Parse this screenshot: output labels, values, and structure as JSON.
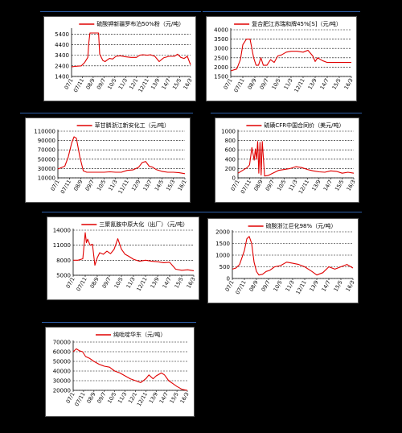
{
  "chart_data": [
    {
      "type": "line",
      "title": "硫酸钾新疆罗布泊50%粉（元/吨）",
      "yticks": [
        5400,
        4400,
        3400,
        2400,
        1400
      ],
      "ylim": [
        1400,
        5800
      ],
      "xticks": [
        "07/1",
        "07/11",
        "08/9",
        "09/7",
        "10/5",
        "11/3",
        "12/1",
        "12/11",
        "13/9",
        "14/7",
        "15/5",
        "16/3"
      ],
      "series": [
        {
          "color": "#e00000",
          "x": [
            0,
            0.3,
            0.9,
            1.2,
            1.5,
            1.6,
            1.7,
            2.3,
            2.5,
            2.6,
            2.9,
            3.1,
            3.5,
            3.8,
            4.1,
            4.5,
            5.0,
            5.5,
            6.0,
            6.3,
            6.6,
            7.0,
            7.3,
            7.7,
            8.1,
            8.5,
            9.0,
            9.5,
            9.8,
            10.1,
            10.4,
            10.7,
            11.0
          ],
          "y": [
            2300,
            2350,
            2400,
            2700,
            3200,
            4600,
            5500,
            5500,
            5500,
            3500,
            2900,
            2800,
            3100,
            3050,
            3300,
            3350,
            3250,
            3200,
            3200,
            3400,
            3450,
            3400,
            3450,
            3300,
            2800,
            3150,
            3300,
            3300,
            3500,
            3200,
            3100,
            3300,
            2500
          ]
        }
      ]
    },
    {
      "type": "line",
      "title": "复合肥江苏瑞和牌45%[S]（元/吨）",
      "yticks": [
        4000,
        3500,
        3000,
        2500,
        2000,
        1500
      ],
      "ylim": [
        1500,
        4000
      ],
      "xticks": [
        "07/1",
        "07/11",
        "08/9",
        "09/7",
        "10/5",
        "11/3",
        "12/11",
        "13/9",
        "14/7",
        "15/5",
        "16/3"
      ],
      "series": [
        {
          "color": "#e00000",
          "x": [
            0,
            0.5,
            0.8,
            1.0,
            1.3,
            1.6,
            1.9,
            2.1,
            2.3,
            2.5,
            2.7,
            3.0,
            3.3,
            3.6,
            3.9,
            4.2,
            4.6,
            5.0,
            5.5,
            6.0,
            6.4,
            6.8,
            7.0,
            7.2,
            7.6,
            8.0,
            8.5,
            9.0,
            9.5,
            10.0
          ],
          "y": [
            1800,
            1900,
            2400,
            3200,
            3500,
            3500,
            2500,
            2100,
            2100,
            2500,
            2100,
            2100,
            2400,
            2250,
            2600,
            2650,
            2800,
            2850,
            2850,
            2800,
            2900,
            2600,
            2300,
            2500,
            2350,
            2250,
            2250,
            2250,
            2250,
            2250
          ]
        }
      ]
    },
    {
      "type": "line",
      "title": "草甘膦浙江新安化工（元/吨）",
      "yticks": [
        110000,
        90000,
        70000,
        50000,
        30000,
        10000
      ],
      "ylim": [
        10000,
        110000
      ],
      "xticks": [
        "07/1",
        "07/11",
        "08/9",
        "09/7",
        "10/5",
        "11/3",
        "11/11",
        "12/9",
        "13/7",
        "14/5",
        "15/3",
        "16/1"
      ],
      "series": [
        {
          "color": "#e00000",
          "x": [
            0,
            0.3,
            0.6,
            0.9,
            1.2,
            1.4,
            1.6,
            1.9,
            2.2,
            2.5,
            3.0,
            3.5,
            4.0,
            4.5,
            5.0,
            5.5,
            6.0,
            6.5,
            7.0,
            7.3,
            7.6,
            7.9,
            8.2,
            8.5,
            9.0,
            9.5,
            10.0,
            10.5,
            11.0
          ],
          "y": [
            29000,
            32000,
            35000,
            55000,
            85000,
            98000,
            95000,
            55000,
            25000,
            22000,
            22000,
            22000,
            22000,
            23000,
            22000,
            22000,
            26000,
            27000,
            33000,
            43000,
            45000,
            35000,
            33000,
            28000,
            24000,
            22000,
            22000,
            21000,
            19000
          ]
        }
      ]
    },
    {
      "type": "line",
      "title": "硫磺CFR中国合同价（美元/吨）",
      "yticks": [
        1000,
        800,
        600,
        400,
        200,
        0
      ],
      "ylim": [
        0,
        1000
      ],
      "xticks": [
        "07/1",
        "07/11",
        "08/9",
        "09/7",
        "10/5",
        "11/3",
        "12/11",
        "13/9",
        "14/7",
        "15/5",
        "16/3"
      ],
      "series": [
        {
          "color": "#e00000",
          "x": [
            0,
            0.4,
            0.8,
            1.0,
            1.2,
            1.4,
            1.5,
            1.6,
            1.7,
            1.8,
            1.9,
            2.0,
            2.1,
            2.3,
            2.6,
            3.0,
            3.5,
            4.0,
            4.5,
            5.0,
            5.5,
            6.0,
            6.5,
            7.0,
            7.5,
            8.0,
            8.5,
            9.0,
            9.5,
            10.0
          ],
          "y": [
            100,
            160,
            220,
            280,
            650,
            380,
            620,
            400,
            780,
            100,
            760,
            60,
            780,
            40,
            50,
            100,
            160,
            180,
            200,
            240,
            220,
            180,
            150,
            130,
            120,
            150,
            140,
            100,
            120,
            100
          ]
        }
      ]
    },
    {
      "type": "line",
      "title": "三聚氰胺中原大化（出厂）（元/吨）",
      "yticks": [
        14000,
        11000,
        8000,
        5000
      ],
      "ylim": [
        5000,
        14000
      ],
      "xticks": [
        "07/1",
        "07/11",
        "08/9",
        "09/7",
        "10/5",
        "11/3",
        "12/11",
        "13/9",
        "14/7",
        "15/5",
        "16/3"
      ],
      "series": [
        {
          "color": "#e00000",
          "x": [
            0,
            0.4,
            0.8,
            1.0,
            1.1,
            1.2,
            1.4,
            1.6,
            1.8,
            2.0,
            2.2,
            2.5,
            2.8,
            3.1,
            3.4,
            3.7,
            4.0,
            4.3,
            4.6,
            5.0,
            5.5,
            6.0,
            6.5,
            7.0,
            7.5,
            8.0,
            8.5,
            9.0,
            9.5,
            10.0
          ],
          "y": [
            8000,
            8000,
            8300,
            13500,
            11500,
            12200,
            11000,
            11200,
            7000,
            8500,
            9500,
            9200,
            9800,
            9300,
            10200,
            12300,
            10200,
            9200,
            8800,
            8200,
            7800,
            8000,
            7800,
            7700,
            7500,
            7600,
            6200,
            6000,
            6100,
            5900
          ]
        }
      ]
    },
    {
      "type": "line",
      "title": "硫酸浙江巨化98%（元/吨）",
      "yticks": [
        2000,
        1500,
        1000,
        500,
        0
      ],
      "ylim": [
        0,
        2000
      ],
      "xticks": [
        "07/1",
        "07/11",
        "08/9",
        "09/7",
        "10/5",
        "11/3",
        "12/11",
        "13/9",
        "14/7",
        "15/5",
        "16/3"
      ],
      "series": [
        {
          "color": "#e00000",
          "x": [
            0,
            0.3,
            0.6,
            0.8,
            1.0,
            1.2,
            1.4,
            1.6,
            1.8,
            2.0,
            2.2,
            2.5,
            2.8,
            3.1,
            3.5,
            4.0,
            4.5,
            5.0,
            5.5,
            6.0,
            6.3,
            6.6,
            7.0,
            7.5,
            8.0,
            8.5,
            9.0,
            9.5,
            10.0
          ],
          "y": [
            400,
            450,
            600,
            900,
            1200,
            1700,
            1800,
            1500,
            700,
            300,
            150,
            180,
            300,
            350,
            500,
            550,
            700,
            650,
            600,
            500,
            400,
            300,
            150,
            250,
            500,
            400,
            500,
            600,
            450
          ]
        }
      ]
    },
    {
      "type": "line",
      "title": "纯吡啶华东（元/吨）",
      "yticks": [
        70000,
        60000,
        50000,
        40000,
        30000,
        20000
      ],
      "ylim": [
        20000,
        70000
      ],
      "xticks": [
        "07/1",
        "07/11",
        "08/9",
        "09/7",
        "10/5",
        "11/3",
        "12/1",
        "12/11",
        "13/9",
        "14/7",
        "15/5",
        "16/3"
      ],
      "series": [
        {
          "color": "#e00000",
          "x": [
            0,
            0.3,
            0.6,
            0.9,
            1.2,
            1.6,
            2.0,
            2.5,
            3.0,
            3.5,
            4.0,
            4.5,
            5.0,
            5.5,
            6.0,
            6.5,
            7.0,
            7.3,
            7.7,
            8.0,
            8.5,
            8.8,
            9.2,
            9.6,
            10.0,
            10.5,
            11.0
          ],
          "y": [
            60000,
            63000,
            61000,
            60000,
            55000,
            53000,
            50000,
            47000,
            45000,
            44000,
            40000,
            38000,
            35000,
            32000,
            30000,
            28000,
            32000,
            36000,
            32000,
            35000,
            38000,
            36000,
            30000,
            27000,
            24000,
            21000,
            20000
          ]
        }
      ]
    }
  ]
}
